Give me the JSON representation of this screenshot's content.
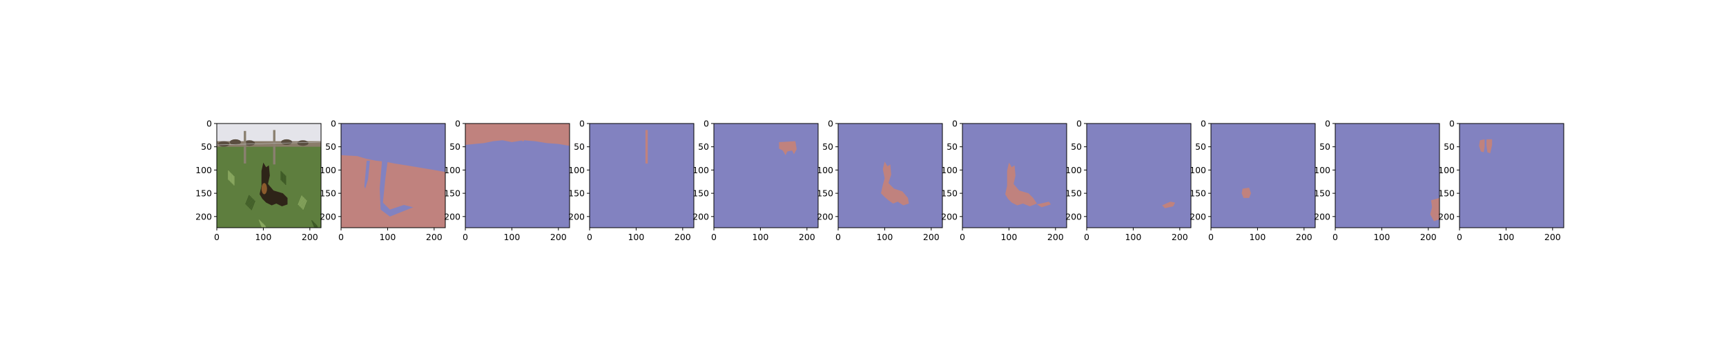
{
  "chart_data": {
    "type": "image_grid",
    "panel_count": 11,
    "axes": {
      "xlim": [
        0,
        224
      ],
      "ylim": [
        224,
        0
      ],
      "x_ticks": [
        0,
        100,
        200
      ],
      "x_tick_labels": [
        "0",
        "100",
        "200"
      ],
      "y_ticks": [
        0,
        50,
        100,
        150,
        200
      ],
      "y_tick_labels": [
        "0",
        "50",
        "100",
        "150",
        "200"
      ]
    },
    "colors": {
      "background_mask": "#8282c0",
      "segment_mask": "#c0827e",
      "photo_sky": "#e4e4ea",
      "photo_grass": "#5e7e3e",
      "photo_dog": "#2e2418"
    },
    "panels": [
      {
        "kind": "photo",
        "subject": "dog sitting in tall grass beside a fence, cattle in background"
      },
      {
        "kind": "mask",
        "segment": "lower field / grass"
      },
      {
        "kind": "mask",
        "segment": "sky strip at top"
      },
      {
        "kind": "mask",
        "segment": "fence post"
      },
      {
        "kind": "mask",
        "segment": "cow"
      },
      {
        "kind": "mask",
        "segment": "dog"
      },
      {
        "kind": "mask",
        "segment": "dog"
      },
      {
        "kind": "mask",
        "segment": "small patch right"
      },
      {
        "kind": "mask",
        "segment": "small blob center"
      },
      {
        "kind": "mask",
        "segment": "patch at right edge"
      },
      {
        "kind": "mask",
        "segment": "cattle pair"
      }
    ]
  }
}
